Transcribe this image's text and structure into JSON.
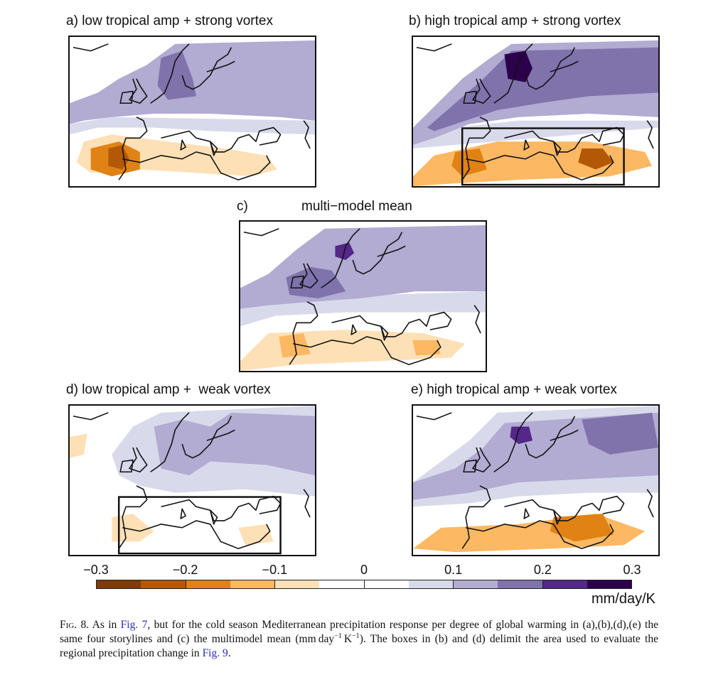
{
  "chart_data": {
    "type": "heatmap",
    "title": "Cold season Mediterranean precipitation response per degree of global warming",
    "units": "mm/day/K",
    "colorbar": {
      "ticks": [
        "−0.3",
        "−0.2",
        "−0.1",
        "0",
        "0.1",
        "0.2",
        "0.3"
      ],
      "range": [
        -0.3,
        0.3
      ],
      "levels": [
        -0.3,
        -0.25,
        -0.2,
        -0.15,
        -0.1,
        -0.05,
        0,
        0.05,
        0.1,
        0.15,
        0.2,
        0.25,
        0.3
      ],
      "colors": [
        "#7f3b08",
        "#b35806",
        "#e08214",
        "#fdb863",
        "#fee0b6",
        "#ffffff",
        "#ffffff",
        "#d8daeb",
        "#b2abd2",
        "#8073ac",
        "#542788",
        "#2d004b"
      ]
    },
    "panels": [
      {
        "id": "a",
        "label": "a)",
        "title": "low tropical amp + strong vortex",
        "box": false,
        "regions": [
          {
            "name": "north-europe-wet",
            "value": 0.12
          },
          {
            "name": "scandinavia-core",
            "value": 0.17
          },
          {
            "name": "atlantic-band",
            "value": 0.07
          },
          {
            "name": "iberia-dry-core",
            "value": -0.22
          },
          {
            "name": "iberia-dry",
            "value": -0.17
          },
          {
            "name": "mediterranean-dry",
            "value": -0.08
          }
        ]
      },
      {
        "id": "b",
        "label": "b)",
        "title": "high tropical amp + strong vortex",
        "box": true,
        "regions": [
          {
            "name": "north-europe-wet",
            "value": 0.17
          },
          {
            "name": "norway-core",
            "value": 0.27
          },
          {
            "name": "atlantic-band",
            "value": 0.12
          },
          {
            "name": "transition",
            "value": 0.07
          },
          {
            "name": "mediterranean-dry",
            "value": -0.12
          },
          {
            "name": "iberia-dry",
            "value": -0.17
          },
          {
            "name": "east-med-core",
            "value": -0.22
          }
        ]
      },
      {
        "id": "c",
        "label": "c)",
        "title": "multi−model mean",
        "box": false,
        "regions": [
          {
            "name": "north-europe-wet",
            "value": 0.12
          },
          {
            "name": "norway-core",
            "value": 0.22
          },
          {
            "name": "uk-north-sea",
            "value": 0.17
          },
          {
            "name": "atlantic-band",
            "value": 0.07
          },
          {
            "name": "mediterranean-dry",
            "value": -0.08
          },
          {
            "name": "iberia-dry",
            "value": -0.12
          },
          {
            "name": "east-med-dry",
            "value": -0.12
          }
        ]
      },
      {
        "id": "d",
        "label": "d)",
        "title": "low tropical amp +  weak vortex",
        "box": true,
        "regions": [
          {
            "name": "north-europe-wet",
            "value": 0.07
          },
          {
            "name": "central-north-wet",
            "value": 0.12
          },
          {
            "name": "iberia-dry",
            "value": -0.08
          },
          {
            "name": "east-med-dry",
            "value": -0.08
          },
          {
            "name": "atlantic-dry",
            "value": -0.08
          }
        ]
      },
      {
        "id": "e",
        "label": "e)",
        "title": "high tropical amp + weak vortex",
        "box": false,
        "regions": [
          {
            "name": "north-europe-wet",
            "value": 0.12
          },
          {
            "name": "norway-core",
            "value": 0.22
          },
          {
            "name": "russia-wet",
            "value": 0.17
          },
          {
            "name": "atlantic-band",
            "value": 0.07
          },
          {
            "name": "mediterranean-dry",
            "value": -0.12
          },
          {
            "name": "east-med-core",
            "value": -0.17
          }
        ]
      }
    ]
  },
  "caption": {
    "fig_label": "Fig. 8.",
    "t1": " As in ",
    "link1": "Fig. 7",
    "t2": ", but for the cold season Mediterranean precipitation response per degree of global warming in (a),(b),(d),(e) the same four storylines and (c) the multimodel mean (mm day",
    "sup1": "−1",
    "t3": " K",
    "sup2": "−1",
    "t4": "). The boxes in (b) and (d) delimit the area used to evaluate the regional precipitation change in ",
    "link2": "Fig. 9",
    "t5": "."
  }
}
